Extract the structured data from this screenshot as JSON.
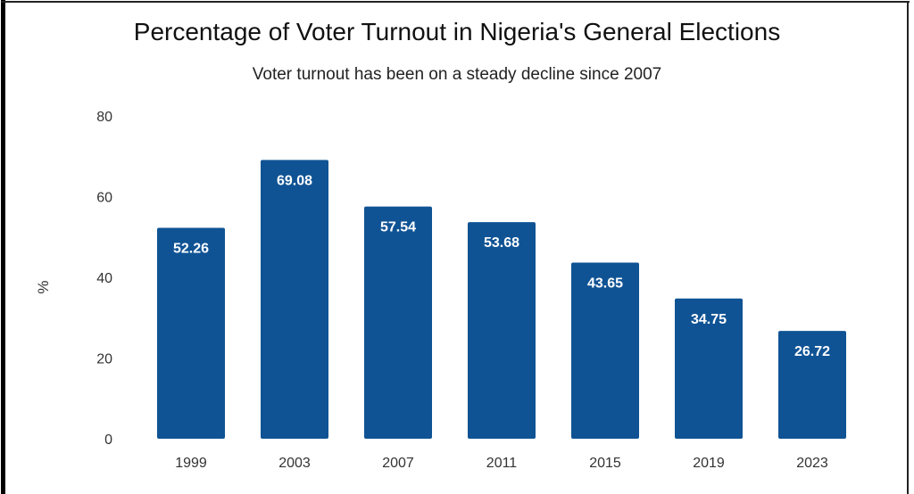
{
  "chart_data": {
    "type": "bar",
    "title": "Percentage of Voter Turnout in Nigeria's General Elections",
    "subtitle": "Voter turnout has been on a steady decline since 2007",
    "xlabel": "",
    "ylabel": "%",
    "ylim": [
      0,
      80
    ],
    "yticks": [
      0,
      20,
      40,
      60,
      80
    ],
    "grid": false,
    "categories": [
      "1999",
      "2003",
      "2007",
      "2011",
      "2015",
      "2019",
      "2023"
    ],
    "values": [
      52.26,
      69.08,
      57.54,
      53.68,
      43.65,
      34.75,
      26.72
    ],
    "data_labels": [
      "52.26",
      "69.08",
      "57.54",
      "53.68",
      "43.65",
      "34.75",
      "26.72"
    ],
    "bar_color": "#0f5394",
    "label_color": "#ffffff"
  }
}
